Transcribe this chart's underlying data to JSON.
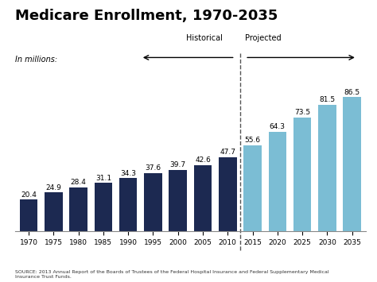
{
  "title": "Medicare Enrollment, 1970-2035",
  "ylabel": "In millions:",
  "categories": [
    "1970",
    "1975",
    "1980",
    "1985",
    "1990",
    "1995",
    "2000",
    "2005",
    "2010",
    "2015",
    "2020",
    "2025",
    "2030",
    "2035"
  ],
  "values": [
    20.4,
    24.9,
    28.4,
    31.1,
    34.3,
    37.6,
    39.7,
    42.6,
    47.7,
    55.6,
    64.3,
    73.5,
    81.5,
    86.5
  ],
  "historical_color": "#1c2951",
  "projected_color": "#7bbdd4",
  "split_after": 9,
  "source_text": "SOURCE: 2013 Annual Report of the Boards of Trustees of the Federal Hospital Insurance and Federal Supplementary Medical\nInsurance Trust Funds.",
  "background_color": "#ffffff",
  "title_fontsize": 13,
  "bar_label_fontsize": 6.5,
  "ylim": [
    0,
    100
  ]
}
